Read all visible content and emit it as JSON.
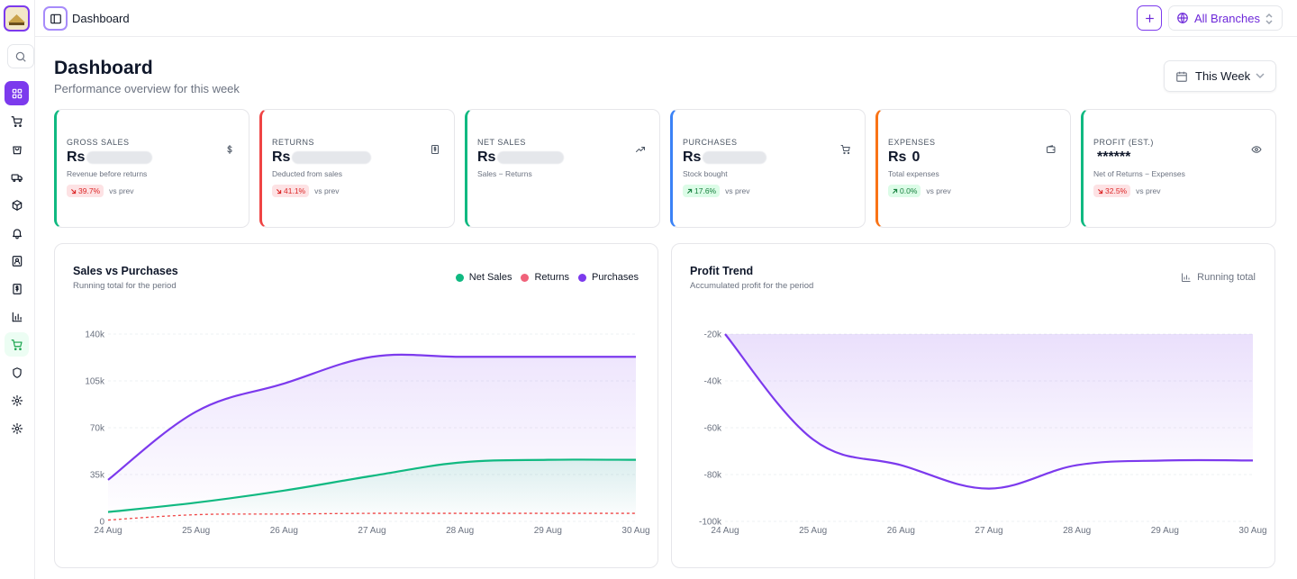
{
  "app": {
    "breadcrumb": "Dashboard",
    "branch_selector": "All Branches",
    "logo_name": "business-logo"
  },
  "sidebar": {
    "items": [
      {
        "icon": "dashboard-grid-icon",
        "active": true
      },
      {
        "icon": "cart-icon"
      },
      {
        "icon": "shopping-bag-icon"
      },
      {
        "icon": "truck-icon"
      },
      {
        "icon": "package-icon"
      },
      {
        "icon": "bell-icon"
      },
      {
        "icon": "contacts-icon"
      },
      {
        "icon": "receipt-icon"
      },
      {
        "icon": "bar-chart-icon"
      },
      {
        "icon": "cart-highlighted-icon",
        "highlighted": true
      },
      {
        "icon": "shield-icon"
      },
      {
        "icon": "settings-gear-icon"
      },
      {
        "icon": "settings-gear-alt-icon"
      }
    ]
  },
  "header": {
    "title": "Dashboard",
    "subtitle": "Performance overview for this week",
    "period": "This Week"
  },
  "kpis": [
    {
      "label": "GROSS SALES",
      "currency": "Rs",
      "value": "",
      "desc": "Revenue before returns",
      "delta": "39.7%",
      "trend": "down",
      "vs": "vs prev",
      "icon": "dollar-icon",
      "color": "#10b981"
    },
    {
      "label": "RETURNS",
      "currency": "Rs",
      "value": "",
      "desc": "Deducted from sales",
      "delta": "41.1%",
      "trend": "down",
      "vs": "vs prev",
      "icon": "receipt-icon",
      "color": "#ef4444"
    },
    {
      "label": "NET SALES",
      "currency": "Rs",
      "value": "",
      "desc": "Sales − Returns",
      "delta": "",
      "trend": "",
      "vs": "",
      "icon": "trending-up-icon",
      "color": "#10b981"
    },
    {
      "label": "PURCHASES",
      "currency": "Rs",
      "value": "",
      "desc": "Stock bought",
      "delta": "17.6%",
      "trend": "up",
      "vs": "vs prev",
      "icon": "cart-icon",
      "color": "#3b82f6"
    },
    {
      "label": "EXPENSES",
      "currency": "Rs",
      "value": "0",
      "desc": "Total expenses",
      "delta": "0.0%",
      "trend": "up",
      "vs": "vs prev",
      "icon": "wallet-icon",
      "color": "#f97316"
    },
    {
      "label": "PROFIT (EST.)",
      "currency": "",
      "value": "******",
      "desc": "Net of Returns − Expenses",
      "delta": "32.5%",
      "trend": "down",
      "vs": "vs prev",
      "icon": "eye-icon",
      "color": "#10b981"
    }
  ],
  "sales_chart": {
    "title": "Sales vs Purchases",
    "subtitle": "Running total for the period",
    "legend": [
      {
        "name": "Net Sales",
        "color": "#10b981"
      },
      {
        "name": "Returns",
        "color": "#f0627a"
      },
      {
        "name": "Purchases",
        "color": "#7c3aed"
      }
    ]
  },
  "profit_chart": {
    "title": "Profit Trend",
    "subtitle": "Accumulated profit for the period",
    "mode_label": "Running total"
  },
  "chart_data": [
    {
      "type": "area",
      "title": "Sales vs Purchases",
      "categories": [
        "24 Aug",
        "25 Aug",
        "26 Aug",
        "27 Aug",
        "28 Aug",
        "29 Aug",
        "30 Aug"
      ],
      "yticks": [
        "0",
        "35k",
        "70k",
        "105k",
        "140k"
      ],
      "ylim": [
        0,
        140000
      ],
      "series": [
        {
          "name": "Purchases",
          "color": "#7c3aed",
          "values": [
            31000,
            82000,
            103000,
            123000,
            123000,
            123000,
            123000
          ]
        },
        {
          "name": "Net Sales",
          "color": "#10b981",
          "values": [
            7000,
            14000,
            23000,
            34000,
            44000,
            46000,
            46000
          ]
        },
        {
          "name": "Returns",
          "color": "#ef4444",
          "dashed": true,
          "values": [
            1000,
            5000,
            5500,
            6000,
            6000,
            6000,
            6000
          ]
        }
      ],
      "grid": true
    },
    {
      "type": "area",
      "title": "Profit Trend",
      "categories": [
        "24 Aug",
        "25 Aug",
        "26 Aug",
        "27 Aug",
        "28 Aug",
        "29 Aug",
        "30 Aug"
      ],
      "yticks": [
        "-100k",
        "-80k",
        "-60k",
        "-40k",
        "-20k"
      ],
      "ylim": [
        -100000,
        -20000
      ],
      "series": [
        {
          "name": "Profit",
          "color": "#7c3aed",
          "values": [
            -20000,
            -65000,
            -76000,
            -86000,
            -76000,
            -74000,
            -74000
          ]
        }
      ],
      "grid": true
    }
  ]
}
